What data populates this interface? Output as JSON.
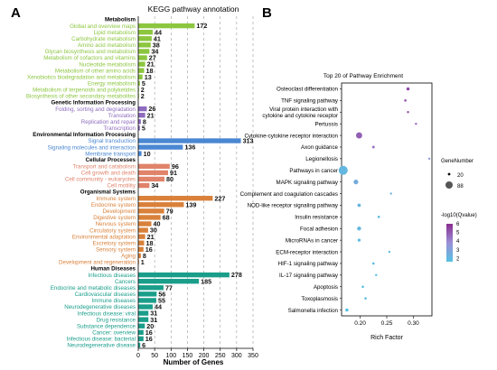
{
  "panel_a": {
    "panel_label": "A",
    "title": "KEGG pathway annotation",
    "xlabel": "Number of Genes",
    "xticks": [
      "0",
      "50",
      "100",
      "150",
      "200",
      "250",
      "300",
      "350"
    ]
  },
  "panel_b": {
    "panel_label": "B",
    "title": "Top 20 of Pathway Enrichment",
    "xlabel": "Rich Factor",
    "xticks": [
      "0.20",
      "0.25",
      "0.30"
    ],
    "size_legend_title": "GeneNumber",
    "size_legend_labels": [
      "20",
      "88"
    ],
    "color_legend_title": "-log10(Qvalue)",
    "color_legend_labels": [
      "6",
      "5",
      "4",
      "3",
      "2"
    ]
  },
  "chart_data": [
    {
      "type": "bar",
      "orientation": "horizontal",
      "title": "KEGG pathway annotation",
      "xlabel": "Number of Genes",
      "xlim": [
        0,
        350
      ],
      "groups": [
        {
          "name": "Metabolism",
          "color": "#8cc63f",
          "items": [
            {
              "label": "Global and overview maps",
              "value": 172
            },
            {
              "label": "Lipid metabolism",
              "value": 44
            },
            {
              "label": "Carbohydrate metabolism",
              "value": 41
            },
            {
              "label": "Amino acid metabolism",
              "value": 38
            },
            {
              "label": "Glycan biosynthesis and metabolism",
              "value": 34
            },
            {
              "label": "Metabolism of cofactors and vitamins",
              "value": 27
            },
            {
              "label": "Nucleotide metabolism",
              "value": 21
            },
            {
              "label": "Metabolism of other amino acids",
              "value": 18
            },
            {
              "label": "Xenobiotics biodegradation and metabolism",
              "value": 13
            },
            {
              "label": "Energy metabolism",
              "value": 5
            },
            {
              "label": "Metabolism of terpenoids and polyketides",
              "value": 2
            },
            {
              "label": "Biosynthesis of other secondary metabolites",
              "value": 2
            }
          ]
        },
        {
          "name": "Genetic Information Processing",
          "color": "#8e6bbf",
          "items": [
            {
              "label": "Folding, sorting and degradation",
              "value": 26
            },
            {
              "label": "Translation",
              "value": 21
            },
            {
              "label": "Replication and repair",
              "value": 8
            },
            {
              "label": "Transcription",
              "value": 5
            }
          ]
        },
        {
          "name": "Environmental Information Processing",
          "color": "#4a87d3",
          "items": [
            {
              "label": "Signal transduction",
              "value": 313
            },
            {
              "label": "Signaling molecules and interaction",
              "value": 136
            },
            {
              "label": "Membrane transport",
              "value": 10
            }
          ]
        },
        {
          "name": "Cellular Processes",
          "color": "#e0836a",
          "items": [
            {
              "label": "Transport and catabolism",
              "value": 96
            },
            {
              "label": "Cell growth and death",
              "value": 91
            },
            {
              "label": "Cell community - eukaryotes",
              "value": 80
            },
            {
              "label": "Cell motility",
              "value": 34
            }
          ]
        },
        {
          "name": "Organismal Systems",
          "color": "#d9813a",
          "items": [
            {
              "label": "Immune system",
              "value": 227
            },
            {
              "label": "Endocrine system",
              "value": 139
            },
            {
              "label": "Development",
              "value": 79
            },
            {
              "label": "Digestive system",
              "value": 68
            },
            {
              "label": "Nervous system",
              "value": 40
            },
            {
              "label": "Circulatory system",
              "value": 30
            },
            {
              "label": "Environmental adaptation",
              "value": 21
            },
            {
              "label": "Excretory system",
              "value": 18
            },
            {
              "label": "Sensory system",
              "value": 16
            },
            {
              "label": "Aging",
              "value": 8
            },
            {
              "label": "Development and regeneration",
              "value": 1
            }
          ]
        },
        {
          "name": "Human Diseases",
          "color": "#1a9e8a",
          "items": [
            {
              "label": "Infectious diseases",
              "value": 278
            },
            {
              "label": "Cancers",
              "value": 185
            },
            {
              "label": "Endocrine and metabolic diseases",
              "value": 77
            },
            {
              "label": "Cardiovascular diseases",
              "value": 56
            },
            {
              "label": "Immune diseases",
              "value": 55
            },
            {
              "label": "Neurodegenerative diseases",
              "value": 44
            },
            {
              "label": "Infectious disease: viral",
              "value": 31
            },
            {
              "label": "Drug resistance",
              "value": 31
            },
            {
              "label": "Substance dependence",
              "value": 20
            },
            {
              "label": "Cancer: overview",
              "value": 16
            },
            {
              "label": "Infectious disease: bacterial",
              "value": 16
            },
            {
              "label": "Neurodegenerative disease",
              "value": 6
            }
          ]
        }
      ]
    },
    {
      "type": "scatter",
      "title": "Top 20 of Pathway Enrichment",
      "xlabel": "Rich Factor",
      "xlim": [
        0.165,
        0.335
      ],
      "size_key": "GeneNumber",
      "size_range": [
        20,
        88
      ],
      "color_key": "-log10(Qvalue)",
      "color_range": [
        2,
        6
      ],
      "points": [
        {
          "pathway": "Osteoclast differentiation",
          "rich_factor": 0.29,
          "gene_number": 30,
          "neg_log10_q": 5.4
        },
        {
          "pathway": "TNF signaling pathway",
          "rich_factor": 0.285,
          "gene_number": 22,
          "neg_log10_q": 5.2
        },
        {
          "pathway": "Viral protein interaction with cytokine and cytokine receptor",
          "rich_factor": 0.29,
          "gene_number": 20,
          "neg_log10_q": 5.3
        },
        {
          "pathway": "Pertussis",
          "rich_factor": 0.305,
          "gene_number": 20,
          "neg_log10_q": 4.8
        },
        {
          "pathway": "Cytokine-cytokine receptor interaction",
          "rich_factor": 0.198,
          "gene_number": 60,
          "neg_log10_q": 5.0
        },
        {
          "pathway": "Axon guidance",
          "rich_factor": 0.225,
          "gene_number": 24,
          "neg_log10_q": 4.6
        },
        {
          "pathway": "Legionellosis",
          "rich_factor": 0.33,
          "gene_number": 20,
          "neg_log10_q": 3.6
        },
        {
          "pathway": "Pathways in cancer",
          "rich_factor": 0.168,
          "gene_number": 88,
          "neg_log10_q": 2.4
        },
        {
          "pathway": "MAPK signaling pathway",
          "rich_factor": 0.192,
          "gene_number": 45,
          "neg_log10_q": 2.9
        },
        {
          "pathway": "Complement and coagulation cascades",
          "rich_factor": 0.258,
          "gene_number": 20,
          "neg_log10_q": 2.5
        },
        {
          "pathway": "NOD-like receptor signaling pathway",
          "rich_factor": 0.198,
          "gene_number": 32,
          "neg_log10_q": 2.5
        },
        {
          "pathway": "Insulin resistance",
          "rich_factor": 0.235,
          "gene_number": 22,
          "neg_log10_q": 2.3
        },
        {
          "pathway": "Focal adhesion",
          "rich_factor": 0.198,
          "gene_number": 38,
          "neg_log10_q": 2.4
        },
        {
          "pathway": "MicroRNAs in cancer",
          "rich_factor": 0.198,
          "gene_number": 28,
          "neg_log10_q": 2.2
        },
        {
          "pathway": "ECM-receptor interaction",
          "rich_factor": 0.255,
          "gene_number": 20,
          "neg_log10_q": 2.2
        },
        {
          "pathway": "HIF-1 signaling pathway",
          "rich_factor": 0.225,
          "gene_number": 22,
          "neg_log10_q": 2.2
        },
        {
          "pathway": "IL-17 signaling pathway",
          "rich_factor": 0.23,
          "gene_number": 20,
          "neg_log10_q": 2.1
        },
        {
          "pathway": "Apoptosis",
          "rich_factor": 0.205,
          "gene_number": 22,
          "neg_log10_q": 2.1
        },
        {
          "pathway": "Toxoplasmosis",
          "rich_factor": 0.21,
          "gene_number": 22,
          "neg_log10_q": 2.1
        },
        {
          "pathway": "Salmonella infection",
          "rich_factor": 0.175,
          "gene_number": 30,
          "neg_log10_q": 2.0
        }
      ]
    }
  ]
}
